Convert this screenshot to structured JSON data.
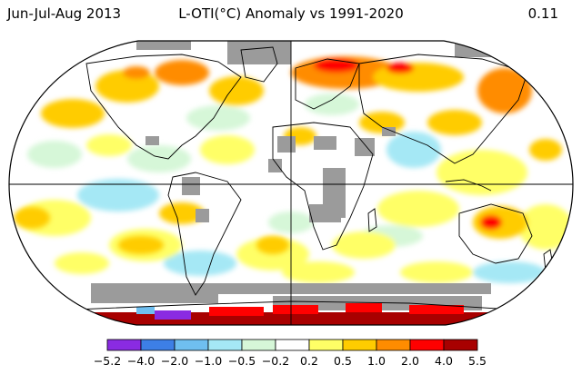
{
  "header": {
    "period": "Jun-Jul-Aug 2013",
    "title": "L-OTI(°C) Anomaly vs 1991-2020",
    "global_mean": "0.11"
  },
  "colors": {
    "missing": "#9b9b9b",
    "bins": [
      "#8a2be2",
      "#3d7fe6",
      "#6fbff0",
      "#a5e8f5",
      "#d6f7d8",
      "#ffffff",
      "#ffff66",
      "#ffcc00",
      "#ff8c00",
      "#ff0000",
      "#a80000"
    ]
  },
  "legend": {
    "ticks": [
      "−5.2",
      "−4.0",
      "−2.0",
      "−1.0",
      "−0.5",
      "−0.2",
      "0.2",
      "0.5",
      "1.0",
      "2.0",
      "4.0",
      "5.5"
    ]
  }
}
